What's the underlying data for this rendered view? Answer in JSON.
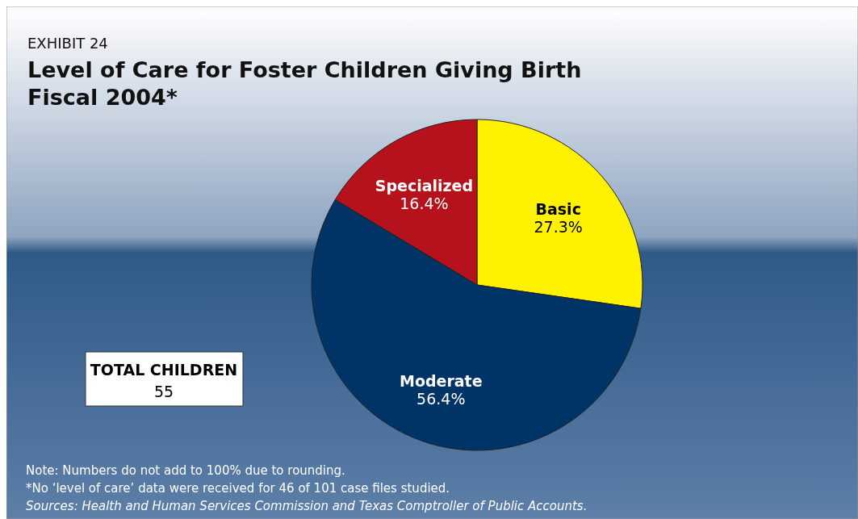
{
  "chart_data": {
    "type": "pie",
    "title": "Level of Care for Foster Children Giving Birth\nFiscal 2004*",
    "categories": [
      "Basic",
      "Moderate",
      "Specialized"
    ],
    "values": [
      27.3,
      56.4,
      16.4
    ],
    "colors": [
      "#fff200",
      "#003366",
      "#b5121b"
    ],
    "value_labels": [
      "27.3%",
      "56.4%",
      "16.4%"
    ],
    "legend": false,
    "annotations": [
      "EXHIBIT 24",
      "TOTAL CHILDREN",
      "55",
      "Note: Numbers do not add to 100% due to rounding.",
      "*No ‘level of care’ data were received for 46 of 101 case files studied.",
      "Sources: Health and Human Services Commission and Texas Comptroller of Public Accounts."
    ]
  }
}
